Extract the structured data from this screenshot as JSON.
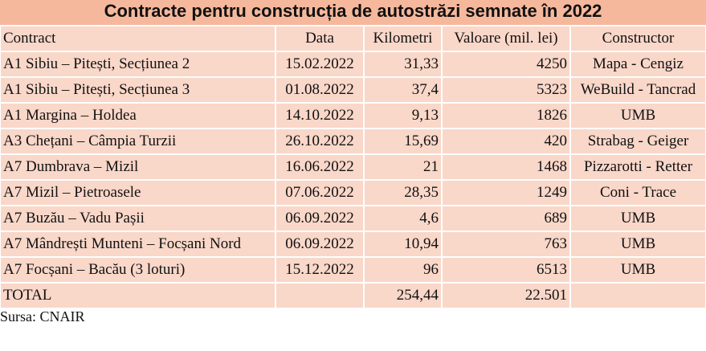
{
  "header": {
    "title": "Contracte pentru construcția de autostrăzi semnate în 2022"
  },
  "table": {
    "columns": [
      "Contract",
      "Data",
      "Kilometri",
      "Valoare (mil. lei)",
      "Constructor"
    ],
    "rows": [
      [
        "A1 Sibiu – Pitești, Secțiunea 2",
        "15.02.2022",
        "31,33",
        "4250",
        "Mapa - Cengiz"
      ],
      [
        "A1 Sibiu – Pitești, Secțiunea 3",
        "01.08.2022",
        "37,4",
        "5323",
        "WeBuild - Tancrad"
      ],
      [
        "A1 Margina – Holdea",
        "14.10.2022",
        "9,13",
        "1826",
        "UMB"
      ],
      [
        "A3 Chețani – Câmpia Turzii",
        "26.10.2022",
        "15,69",
        "420",
        "Strabag - Geiger"
      ],
      [
        "A7 Dumbrava – Mizil",
        "16.06.2022",
        "21",
        "1468",
        "Pizzarotti - Retter"
      ],
      [
        "A7 Mizil – Pietroasele",
        "07.06.2022",
        "28,35",
        "1249",
        "Coni - Trace"
      ],
      [
        "A7 Buzău – Vadu Pașii",
        "06.09.2022",
        "4,6",
        "689",
        "UMB"
      ],
      [
        "A7 Mândrești Munteni – Focșani Nord",
        "06.09.2022",
        "10,94",
        "763",
        "UMB"
      ],
      [
        "A7 Focșani – Bacău (3 loturi)",
        "15.12.2022",
        "96",
        "6513",
        "UMB"
      ]
    ],
    "total": {
      "label": "TOTAL",
      "kilometri": "254,44",
      "valoare": "22.501"
    }
  },
  "footer": {
    "source": "Sursa: CNAIR"
  }
}
